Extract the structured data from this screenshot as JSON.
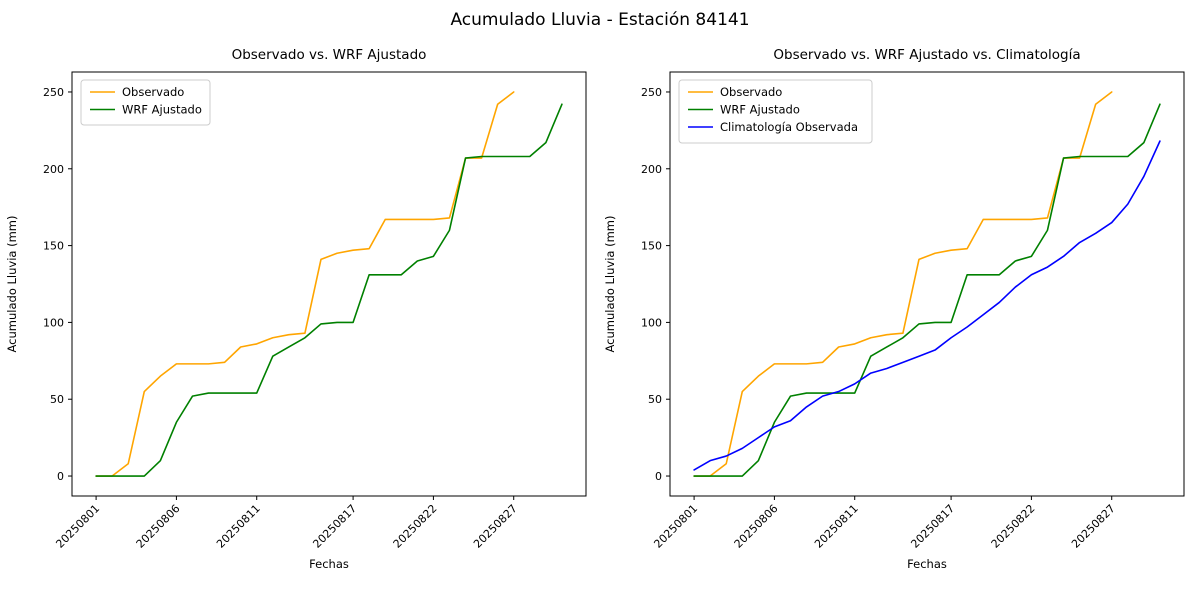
{
  "figure": {
    "title": "Acumulado Lluvia - Estación 84141"
  },
  "colors": {
    "observado": "#ffa500",
    "wrf": "#008000",
    "climatologia": "#0000ff",
    "axis": "#000000",
    "legend_border": "#cccccc"
  },
  "chart_data": [
    {
      "type": "line",
      "title": "Observado vs. WRF Ajustado",
      "xlabel": "Fechas",
      "ylabel": "Acumulado Lluvia (mm)",
      "legend_position": "upper left",
      "grid": false,
      "x_dates": [
        "20250801",
        "20250802",
        "20250803",
        "20250804",
        "20250805",
        "20250806",
        "20250807",
        "20250808",
        "20250809",
        "20250810",
        "20250811",
        "20250812",
        "20250813",
        "20250814",
        "20250815",
        "20250816",
        "20250817",
        "20250818",
        "20250819",
        "20250820",
        "20250821",
        "20250822",
        "20250823",
        "20250824",
        "20250825",
        "20250826",
        "20250827",
        "20250828",
        "20250829",
        "20250830"
      ],
      "xtick_indices": [
        1,
        6,
        11,
        17,
        22,
        27
      ],
      "xtick_labels": [
        "20250801",
        "20250806",
        "20250811",
        "20250817",
        "20250822",
        "20250827"
      ],
      "yticks": [
        0,
        50,
        100,
        150,
        200,
        250
      ],
      "ylim": [
        -13,
        263
      ],
      "xlim": [
        -0.5,
        31.5
      ],
      "series": [
        {
          "name": "Observado",
          "color": "#ffa500",
          "values": [
            0,
            0,
            8,
            55,
            65,
            73,
            73,
            73,
            74,
            84,
            86,
            90,
            92,
            93,
            141,
            145,
            147,
            148,
            167,
            167,
            167,
            167,
            168,
            207,
            207,
            242,
            250,
            null,
            null,
            null
          ]
        },
        {
          "name": "WRF Ajustado",
          "color": "#008000",
          "values": [
            0,
            0,
            0,
            0,
            10,
            35,
            52,
            54,
            54,
            54,
            54,
            78,
            84,
            90,
            99,
            100,
            100,
            131,
            131,
            131,
            140,
            143,
            160,
            207,
            208,
            208,
            208,
            208,
            217,
            242
          ]
        }
      ]
    },
    {
      "type": "line",
      "title": "Observado vs. WRF Ajustado vs. Climatología",
      "xlabel": "Fechas",
      "ylabel": "Acumulado Lluvia (mm)",
      "legend_position": "upper left",
      "grid": false,
      "x_dates": [
        "20250801",
        "20250802",
        "20250803",
        "20250804",
        "20250805",
        "20250806",
        "20250807",
        "20250808",
        "20250809",
        "20250810",
        "20250811",
        "20250812",
        "20250813",
        "20250814",
        "20250815",
        "20250816",
        "20250817",
        "20250818",
        "20250819",
        "20250820",
        "20250821",
        "20250822",
        "20250823",
        "20250824",
        "20250825",
        "20250826",
        "20250827",
        "20250828",
        "20250829",
        "20250830"
      ],
      "xtick_indices": [
        1,
        6,
        11,
        17,
        22,
        27
      ],
      "xtick_labels": [
        "20250801",
        "20250806",
        "20250811",
        "20250817",
        "20250822",
        "20250827"
      ],
      "yticks": [
        0,
        50,
        100,
        150,
        200,
        250
      ],
      "ylim": [
        -13,
        263
      ],
      "xlim": [
        -0.5,
        31.5
      ],
      "series": [
        {
          "name": "Observado",
          "color": "#ffa500",
          "values": [
            0,
            0,
            8,
            55,
            65,
            73,
            73,
            73,
            74,
            84,
            86,
            90,
            92,
            93,
            141,
            145,
            147,
            148,
            167,
            167,
            167,
            167,
            168,
            207,
            207,
            242,
            250,
            null,
            null,
            null
          ]
        },
        {
          "name": "WRF Ajustado",
          "color": "#008000",
          "values": [
            0,
            0,
            0,
            0,
            10,
            35,
            52,
            54,
            54,
            54,
            54,
            78,
            84,
            90,
            99,
            100,
            100,
            131,
            131,
            131,
            140,
            143,
            160,
            207,
            208,
            208,
            208,
            208,
            217,
            242
          ]
        },
        {
          "name": "Climatología Observada",
          "color": "#0000ff",
          "values": [
            4,
            10,
            13,
            18,
            25,
            32,
            36,
            45,
            52,
            55,
            60,
            67,
            70,
            74,
            78,
            82,
            90,
            97,
            105,
            113,
            123,
            131,
            136,
            143,
            152,
            158,
            165,
            177,
            195,
            218
          ]
        }
      ]
    }
  ]
}
